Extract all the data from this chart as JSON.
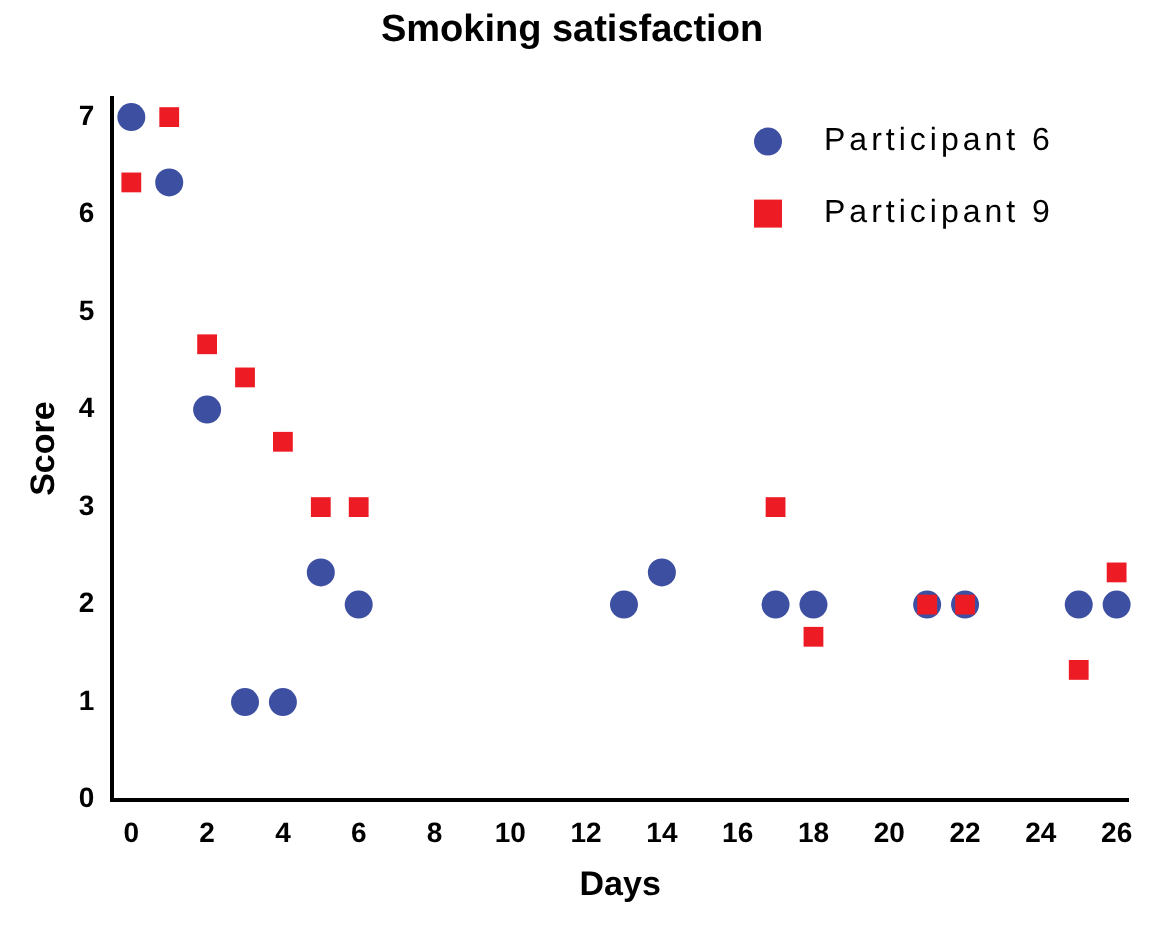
{
  "chart_data": {
    "type": "scatter",
    "title": "Smoking satisfaction",
    "xlabel": "Days",
    "ylabel": "Score",
    "xlim": [
      -0.5,
      26.3
    ],
    "xticks": [
      0,
      2,
      4,
      6,
      8,
      10,
      12,
      14,
      16,
      18,
      20,
      22,
      24,
      26
    ],
    "ylim": [
      0,
      7.2
    ],
    "yticks": [
      0,
      1,
      2,
      3,
      4,
      5,
      6,
      7
    ],
    "grid": false,
    "legend": "top right",
    "series": [
      {
        "name": "Participant 6",
        "color": "#3d4fa1",
        "marker": "circle",
        "x": [
          0,
          1,
          2,
          3,
          4,
          5,
          6,
          13,
          14,
          17,
          18,
          21,
          22,
          25,
          26
        ],
        "values": [
          7,
          6.33,
          4,
          1,
          1,
          2.33,
          2,
          2,
          2.33,
          2,
          2,
          2,
          2,
          2,
          2
        ]
      },
      {
        "name": "Participant 9",
        "color": "#ed1c24",
        "marker": "square",
        "x": [
          0,
          1,
          2,
          3,
          4,
          5,
          6,
          17,
          18,
          21,
          22,
          25,
          26
        ],
        "values": [
          6.33,
          7,
          4.67,
          4.33,
          3.67,
          3,
          3,
          3,
          1.67,
          2,
          2,
          1.33,
          2.33
        ]
      }
    ]
  }
}
